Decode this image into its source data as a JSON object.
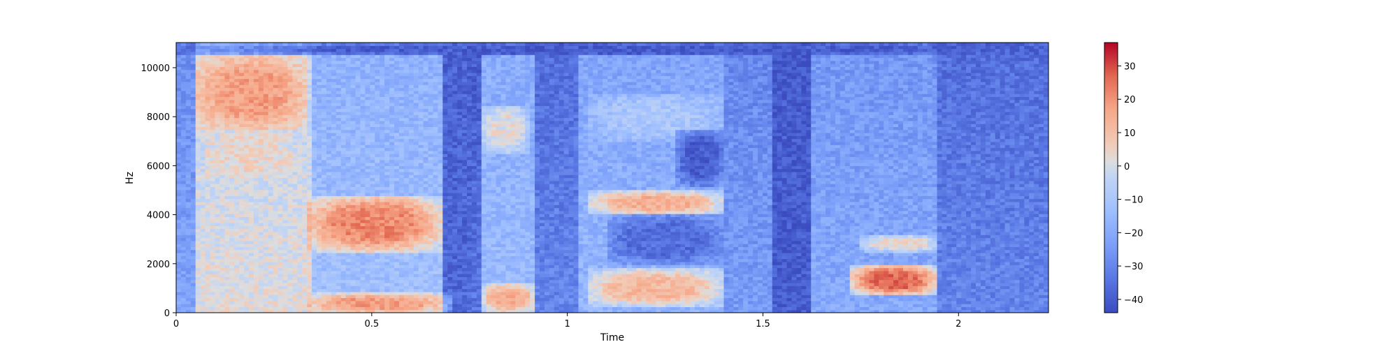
{
  "chart_data": {
    "type": "heatmap",
    "title": "",
    "xlabel": "Time",
    "ylabel": "Hz",
    "xlim": [
      0,
      2.23
    ],
    "ylim": [
      0,
      11025
    ],
    "x_ticks": [
      0,
      0.5,
      1,
      1.5,
      2
    ],
    "x_tick_labels": [
      "0",
      "0.5",
      "1",
      "1.5",
      "2"
    ],
    "y_ticks": [
      0,
      2000,
      4000,
      6000,
      8000,
      10000
    ],
    "y_tick_labels": [
      "0",
      "2000",
      "4000",
      "6000",
      "8000",
      "10000"
    ],
    "colormap": "coolwarm",
    "colorbar": {
      "min": -44,
      "max": 37,
      "ticks": [
        -40,
        -30,
        -20,
        -10,
        0,
        10,
        20,
        30
      ],
      "tick_labels": [
        "−40",
        "−30",
        "−20",
        "−10",
        "0",
        "10",
        "20",
        "30"
      ]
    },
    "colors": {
      "low": "#3b4cc0",
      "mid": "#dddddd",
      "high": "#b40426"
    },
    "grid": false,
    "time_segments": [
      {
        "start": 0.0,
        "end": 0.05,
        "level": -22
      },
      {
        "start": 0.05,
        "end": 0.35,
        "level": 2
      },
      {
        "start": 0.35,
        "end": 0.68,
        "level": -12
      },
      {
        "start": 0.68,
        "end": 0.78,
        "level": -34
      },
      {
        "start": 0.78,
        "end": 0.92,
        "level": -14
      },
      {
        "start": 0.92,
        "end": 1.03,
        "level": -30
      },
      {
        "start": 1.03,
        "end": 1.4,
        "level": -16
      },
      {
        "start": 1.4,
        "end": 1.52,
        "level": -24
      },
      {
        "start": 1.52,
        "end": 1.62,
        "level": -38
      },
      {
        "start": 1.62,
        "end": 1.95,
        "level": -20
      },
      {
        "start": 1.95,
        "end": 2.23,
        "level": -30
      }
    ],
    "energy_regions": [
      {
        "t0": 0.05,
        "t1": 0.33,
        "f0": 7500,
        "f1": 10500,
        "level": 18
      },
      {
        "t0": 0.08,
        "t1": 0.3,
        "f0": 5500,
        "f1": 7500,
        "level": 4
      },
      {
        "t0": 0.33,
        "t1": 0.68,
        "f0": 2500,
        "f1": 4800,
        "level": 22
      },
      {
        "t0": 0.33,
        "t1": 0.7,
        "f0": 0,
        "f1": 800,
        "level": 18
      },
      {
        "t0": 0.78,
        "t1": 0.92,
        "f0": 0,
        "f1": 1200,
        "level": 14
      },
      {
        "t0": 0.78,
        "t1": 0.9,
        "f0": 6500,
        "f1": 8500,
        "level": 2
      },
      {
        "t0": 1.05,
        "t1": 1.4,
        "f0": 4000,
        "f1": 5000,
        "level": 14
      },
      {
        "t0": 1.05,
        "t1": 1.4,
        "f0": 300,
        "f1": 1800,
        "level": 12
      },
      {
        "t0": 1.05,
        "t1": 1.4,
        "f0": 7000,
        "f1": 9000,
        "level": -10
      },
      {
        "t0": 1.72,
        "t1": 1.95,
        "f0": 700,
        "f1": 2000,
        "level": 26
      },
      {
        "t0": 1.75,
        "t1": 1.95,
        "f0": 2500,
        "f1": 3200,
        "level": 4
      }
    ],
    "low_regions": [
      {
        "t0": 1.1,
        "t1": 1.4,
        "f0": 2000,
        "f1": 4000,
        "level": -36
      },
      {
        "t0": 1.28,
        "t1": 1.4,
        "f0": 5200,
        "f1": 7500,
        "level": -40
      },
      {
        "t0": 0.0,
        "t1": 2.23,
        "f0": 10500,
        "f1": 11025,
        "level": -40
      },
      {
        "t0": 0.68,
        "t1": 0.76,
        "f0": 0,
        "f1": 11025,
        "level": -38
      },
      {
        "t0": 1.52,
        "t1": 1.62,
        "f0": 0,
        "f1": 11025,
        "level": -40
      }
    ]
  }
}
